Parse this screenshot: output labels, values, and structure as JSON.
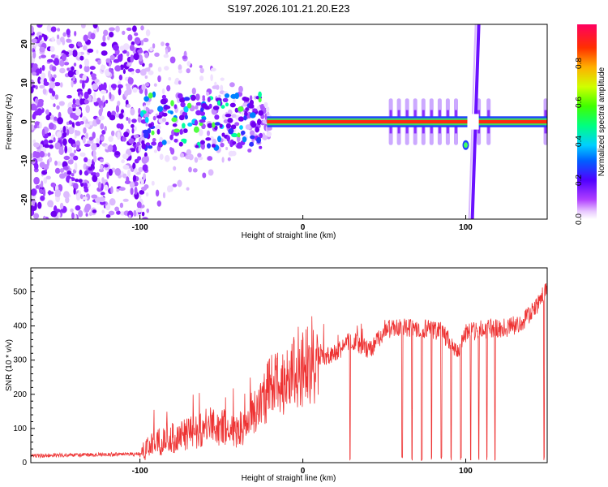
{
  "title": "S197.2026.101.21.20.E23",
  "chart_data": [
    {
      "type": "heatmap",
      "xlabel": "Height of straight line (km)",
      "ylabel": "Frequency (Hz)",
      "xlim": [
        -167,
        150
      ],
      "ylim": [
        -25,
        25
      ],
      "xticks": [
        -100,
        0,
        100
      ],
      "xtick_labels": [
        "-100",
        "0",
        "100"
      ],
      "yticks": [
        -20,
        -10,
        0,
        10,
        20
      ],
      "ytick_labels": [
        "-20",
        "-10",
        "0",
        "10",
        "20"
      ],
      "description_points": {
        "carrier_frequency_hz": 0,
        "carrier_start_km": -22,
        "noise_region_km": [
          -167,
          -95
        ],
        "blob_region_km": [
          -100,
          -25
        ],
        "spike_km": [
          54,
          59,
          64,
          69,
          74,
          79,
          84,
          89,
          94,
          108,
          114,
          149
        ],
        "vertical_streak_km": [
          104,
          108
        ],
        "dip_point": {
          "x": 100,
          "y": -6
        }
      },
      "colorbar": {
        "label": "Normalized spectral amplitude",
        "range": [
          0,
          1
        ],
        "ticks": [
          0.0,
          0.2,
          0.4,
          0.6,
          0.8
        ],
        "tick_labels": [
          "0.0",
          "0.2",
          "0.4",
          "0.6",
          "0.8"
        ]
      }
    },
    {
      "type": "line",
      "xlabel": "Height of straight line (km)",
      "ylabel": "SNR (10 * v/v)",
      "xlim": [
        -167,
        150
      ],
      "ylim": [
        0,
        570
      ],
      "xticks": [
        -100,
        0,
        100
      ],
      "xtick_labels": [
        "-100",
        "0",
        "100"
      ],
      "yticks": [
        0,
        100,
        200,
        300,
        400,
        500
      ],
      "ytick_labels": [
        "0",
        "100",
        "200",
        "300",
        "400",
        "500"
      ],
      "color": "#ee3333",
      "envelope": [
        {
          "x": -167,
          "y": 20
        },
        {
          "x": -100,
          "y": 25
        },
        {
          "x": -90,
          "y": 60
        },
        {
          "x": -70,
          "y": 85
        },
        {
          "x": -55,
          "y": 110
        },
        {
          "x": -40,
          "y": 90
        },
        {
          "x": -30,
          "y": 150
        },
        {
          "x": -20,
          "y": 220
        },
        {
          "x": -10,
          "y": 250
        },
        {
          "x": 0,
          "y": 280
        },
        {
          "x": 10,
          "y": 300
        },
        {
          "x": 20,
          "y": 320
        },
        {
          "x": 30,
          "y": 360
        },
        {
          "x": 40,
          "y": 330
        },
        {
          "x": 45,
          "y": 350
        },
        {
          "x": 50,
          "y": 390
        },
        {
          "x": 70,
          "y": 395
        },
        {
          "x": 85,
          "y": 385
        },
        {
          "x": 95,
          "y": 330
        },
        {
          "x": 100,
          "y": 380
        },
        {
          "x": 110,
          "y": 390
        },
        {
          "x": 125,
          "y": 395
        },
        {
          "x": 135,
          "y": 410
        },
        {
          "x": 145,
          "y": 470
        },
        {
          "x": 150,
          "y": 520
        }
      ],
      "dropouts_km": [
        29,
        61,
        67,
        73,
        79,
        85,
        91,
        97,
        103,
        108,
        113,
        118,
        148
      ]
    }
  ]
}
